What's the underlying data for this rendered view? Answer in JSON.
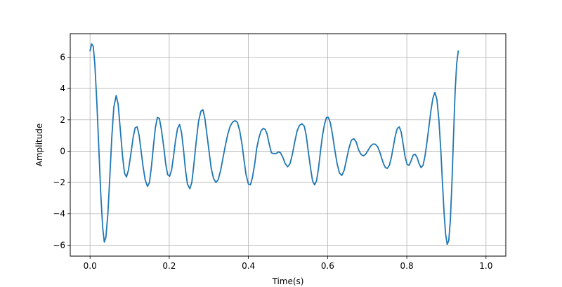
{
  "chart_data": {
    "type": "line",
    "title": "",
    "xlabel": "Time(s)",
    "ylabel": "Amplitude",
    "xlim": [
      -0.05,
      1.05
    ],
    "ylim": [
      -6.7,
      7.5
    ],
    "xticks": [
      0.0,
      0.2,
      0.4,
      0.6,
      0.8,
      1.0
    ],
    "xtick_labels": [
      "0.0",
      "0.2",
      "0.4",
      "0.6",
      "0.8",
      "1.0"
    ],
    "yticks": [
      -6,
      -4,
      -2,
      0,
      2,
      4,
      6
    ],
    "ytick_labels": [
      "−6",
      "−4",
      "−2",
      "0",
      "2",
      "4",
      "6"
    ],
    "grid": true,
    "legend": "none",
    "series": [
      {
        "color": "#1f77b4",
        "points": [
          [
            0.0,
            6.4
          ],
          [
            0.004,
            6.85
          ],
          [
            0.008,
            6.7
          ],
          [
            0.012,
            5.6
          ],
          [
            0.017,
            3.2
          ],
          [
            0.022,
            0.3
          ],
          [
            0.027,
            -2.7
          ],
          [
            0.032,
            -4.9
          ],
          [
            0.036,
            -5.8
          ],
          [
            0.04,
            -5.5
          ],
          [
            0.045,
            -4.0
          ],
          [
            0.05,
            -1.6
          ],
          [
            0.055,
            0.9
          ],
          [
            0.06,
            2.8
          ],
          [
            0.066,
            3.55
          ],
          [
            0.071,
            3.0
          ],
          [
            0.076,
            1.5
          ],
          [
            0.082,
            -0.3
          ],
          [
            0.087,
            -1.4
          ],
          [
            0.092,
            -1.65
          ],
          [
            0.097,
            -1.2
          ],
          [
            0.103,
            -0.2
          ],
          [
            0.109,
            0.9
          ],
          [
            0.114,
            1.5
          ],
          [
            0.119,
            1.55
          ],
          [
            0.124,
            1.0
          ],
          [
            0.129,
            0.0
          ],
          [
            0.134,
            -1.0
          ],
          [
            0.139,
            -1.8
          ],
          [
            0.145,
            -2.25
          ],
          [
            0.15,
            -2.0
          ],
          [
            0.155,
            -1.0
          ],
          [
            0.16,
            0.3
          ],
          [
            0.165,
            1.5
          ],
          [
            0.17,
            2.15
          ],
          [
            0.175,
            2.1
          ],
          [
            0.18,
            1.4
          ],
          [
            0.186,
            0.3
          ],
          [
            0.191,
            -0.8
          ],
          [
            0.196,
            -1.5
          ],
          [
            0.201,
            -1.6
          ],
          [
            0.206,
            -1.2
          ],
          [
            0.211,
            -0.3
          ],
          [
            0.216,
            0.7
          ],
          [
            0.221,
            1.45
          ],
          [
            0.226,
            1.7
          ],
          [
            0.231,
            1.2
          ],
          [
            0.236,
            0.1
          ],
          [
            0.241,
            -1.2
          ],
          [
            0.246,
            -2.1
          ],
          [
            0.252,
            -2.4
          ],
          [
            0.257,
            -2.0
          ],
          [
            0.262,
            -0.9
          ],
          [
            0.268,
            0.6
          ],
          [
            0.274,
            1.9
          ],
          [
            0.28,
            2.55
          ],
          [
            0.285,
            2.65
          ],
          [
            0.29,
            2.1
          ],
          [
            0.295,
            1.1
          ],
          [
            0.301,
            -0.1
          ],
          [
            0.306,
            -1.1
          ],
          [
            0.312,
            -1.75
          ],
          [
            0.318,
            -2.0
          ],
          [
            0.324,
            -1.8
          ],
          [
            0.33,
            -1.2
          ],
          [
            0.336,
            -0.4
          ],
          [
            0.342,
            0.4
          ],
          [
            0.348,
            1.1
          ],
          [
            0.354,
            1.6
          ],
          [
            0.36,
            1.85
          ],
          [
            0.366,
            1.95
          ],
          [
            0.372,
            1.85
          ],
          [
            0.378,
            1.3
          ],
          [
            0.384,
            0.4
          ],
          [
            0.389,
            -0.6
          ],
          [
            0.394,
            -1.5
          ],
          [
            0.4,
            -2.1
          ],
          [
            0.405,
            -2.15
          ],
          [
            0.41,
            -1.7
          ],
          [
            0.416,
            -0.8
          ],
          [
            0.421,
            0.2
          ],
          [
            0.427,
            0.9
          ],
          [
            0.432,
            1.3
          ],
          [
            0.437,
            1.45
          ],
          [
            0.442,
            1.4
          ],
          [
            0.447,
            1.1
          ],
          [
            0.452,
            0.5
          ],
          [
            0.458,
            -0.1
          ],
          [
            0.463,
            -0.15
          ],
          [
            0.47,
            -0.15
          ],
          [
            0.476,
            -0.05
          ],
          [
            0.481,
            -0.1
          ],
          [
            0.487,
            -0.4
          ],
          [
            0.493,
            -0.8
          ],
          [
            0.499,
            -1.0
          ],
          [
            0.505,
            -0.8
          ],
          [
            0.511,
            -0.2
          ],
          [
            0.517,
            0.6
          ],
          [
            0.523,
            1.3
          ],
          [
            0.529,
            1.65
          ],
          [
            0.535,
            1.75
          ],
          [
            0.541,
            1.6
          ],
          [
            0.546,
            1.0
          ],
          [
            0.551,
            0.0
          ],
          [
            0.557,
            -1.1
          ],
          [
            0.562,
            -1.9
          ],
          [
            0.567,
            -2.15
          ],
          [
            0.572,
            -1.9
          ],
          [
            0.577,
            -1.1
          ],
          [
            0.582,
            0.0
          ],
          [
            0.587,
            1.0
          ],
          [
            0.592,
            1.7
          ],
          [
            0.597,
            2.15
          ],
          [
            0.602,
            2.15
          ],
          [
            0.607,
            1.8
          ],
          [
            0.612,
            1.1
          ],
          [
            0.618,
            0.1
          ],
          [
            0.624,
            -0.8
          ],
          [
            0.63,
            -1.4
          ],
          [
            0.636,
            -1.55
          ],
          [
            0.642,
            -1.2
          ],
          [
            0.648,
            -0.5
          ],
          [
            0.654,
            0.2
          ],
          [
            0.66,
            0.7
          ],
          [
            0.666,
            0.8
          ],
          [
            0.672,
            0.6
          ],
          [
            0.678,
            0.1
          ],
          [
            0.684,
            -0.2
          ],
          [
            0.69,
            -0.3
          ],
          [
            0.696,
            -0.2
          ],
          [
            0.702,
            0.05
          ],
          [
            0.708,
            0.3
          ],
          [
            0.714,
            0.45
          ],
          [
            0.72,
            0.45
          ],
          [
            0.726,
            0.3
          ],
          [
            0.731,
            0.0
          ],
          [
            0.736,
            -0.4
          ],
          [
            0.741,
            -0.8
          ],
          [
            0.746,
            -1.05
          ],
          [
            0.751,
            -1.1
          ],
          [
            0.756,
            -0.9
          ],
          [
            0.761,
            -0.4
          ],
          [
            0.766,
            0.3
          ],
          [
            0.771,
            1.0
          ],
          [
            0.776,
            1.45
          ],
          [
            0.781,
            1.55
          ],
          [
            0.786,
            1.2
          ],
          [
            0.791,
            0.4
          ],
          [
            0.796,
            -0.4
          ],
          [
            0.801,
            -0.85
          ],
          [
            0.806,
            -0.9
          ],
          [
            0.811,
            -0.6
          ],
          [
            0.816,
            -0.25
          ],
          [
            0.821,
            -0.2
          ],
          [
            0.826,
            -0.4
          ],
          [
            0.831,
            -0.8
          ],
          [
            0.836,
            -1.05
          ],
          [
            0.841,
            -0.9
          ],
          [
            0.846,
            -0.3
          ],
          [
            0.851,
            0.6
          ],
          [
            0.856,
            1.6
          ],
          [
            0.861,
            2.6
          ],
          [
            0.866,
            3.4
          ],
          [
            0.871,
            3.75
          ],
          [
            0.876,
            3.3
          ],
          [
            0.881,
            2.0
          ],
          [
            0.886,
            0.0
          ],
          [
            0.89,
            -2.0
          ],
          [
            0.894,
            -3.9
          ],
          [
            0.898,
            -5.3
          ],
          [
            0.902,
            -5.95
          ],
          [
            0.906,
            -5.7
          ],
          [
            0.91,
            -4.4
          ],
          [
            0.914,
            -2.0
          ],
          [
            0.918,
            1.0
          ],
          [
            0.922,
            3.8
          ],
          [
            0.926,
            5.6
          ],
          [
            0.93,
            6.4
          ]
        ]
      }
    ]
  }
}
